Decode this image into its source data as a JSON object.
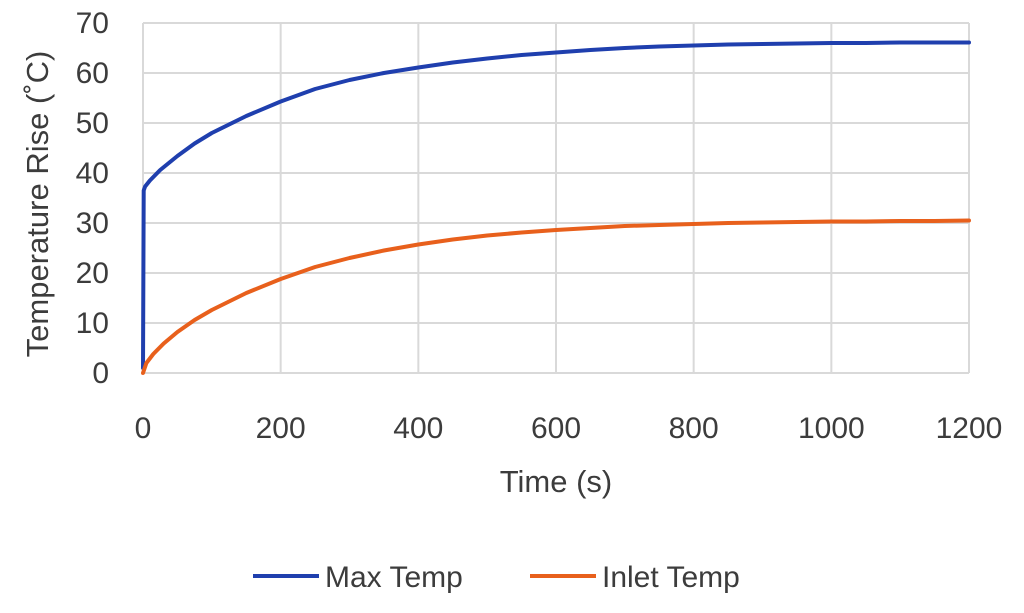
{
  "chart_data": {
    "type": "line",
    "title": "",
    "xlabel": "Time (s)",
    "ylabel": "Temperature Rise (˚C)",
    "xlim": [
      0,
      1200
    ],
    "ylim": [
      0,
      70
    ],
    "x_ticks": [
      0,
      200,
      400,
      600,
      800,
      1000,
      1200
    ],
    "y_ticks": [
      0,
      10,
      20,
      30,
      40,
      50,
      60,
      70
    ],
    "grid": true,
    "legend_position": "bottom",
    "series": [
      {
        "name": "Max Temp",
        "color": "#1f3fae",
        "x": [
          0,
          1,
          3,
          10,
          25,
          50,
          75,
          100,
          150,
          200,
          250,
          300,
          350,
          400,
          450,
          500,
          550,
          600,
          650,
          700,
          750,
          800,
          850,
          900,
          950,
          1000,
          1050,
          1100,
          1150,
          1200
        ],
        "y": [
          1,
          36.5,
          37.3,
          38.5,
          40.6,
          43.4,
          45.9,
          48.0,
          51.4,
          54.3,
          56.8,
          58.6,
          60.0,
          61.1,
          62.1,
          62.9,
          63.6,
          64.1,
          64.6,
          65.0,
          65.3,
          65.5,
          65.7,
          65.8,
          65.9,
          66.0,
          66.0,
          66.1,
          66.1,
          66.1
        ]
      },
      {
        "name": "Inlet Temp",
        "color": "#e8601c",
        "x": [
          0,
          5,
          15,
          30,
          50,
          75,
          100,
          150,
          200,
          250,
          300,
          350,
          400,
          450,
          500,
          550,
          600,
          650,
          700,
          750,
          800,
          850,
          900,
          950,
          1000,
          1050,
          1100,
          1150,
          1200
        ],
        "y": [
          0,
          2.0,
          3.8,
          5.9,
          8.2,
          10.6,
          12.6,
          16.0,
          18.8,
          21.2,
          23.0,
          24.5,
          25.7,
          26.7,
          27.5,
          28.1,
          28.6,
          29.0,
          29.4,
          29.6,
          29.8,
          30.0,
          30.1,
          30.2,
          30.3,
          30.3,
          30.4,
          30.4,
          30.5
        ]
      }
    ]
  }
}
